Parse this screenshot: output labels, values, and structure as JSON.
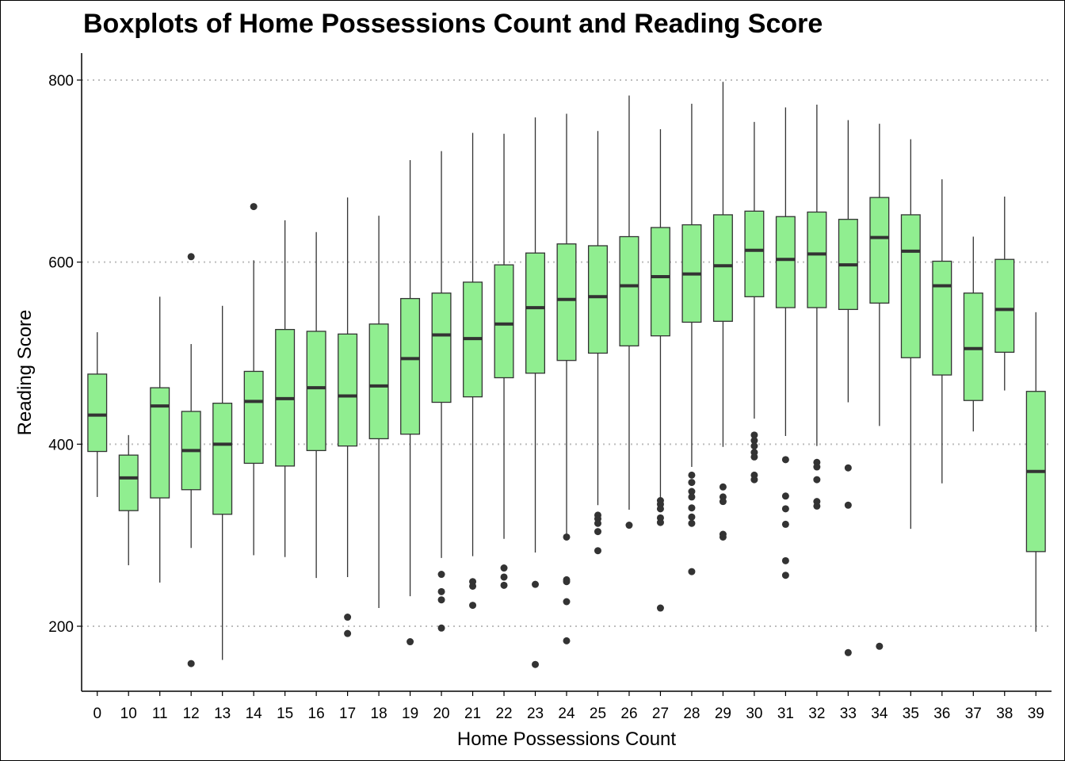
{
  "chart_data": {
    "type": "boxplot",
    "title": "Boxplots of Home Possessions Count and Reading Score",
    "xlabel": "Home Possessions Count",
    "ylabel": "Reading Score",
    "ylim": [
      130,
      830
    ],
    "yticks": [
      200,
      400,
      600,
      800
    ],
    "grid": "horizontal dotted",
    "box_color": "#90EE90",
    "line_color": "#333333",
    "categories": [
      "0",
      "10",
      "11",
      "12",
      "13",
      "14",
      "15",
      "16",
      "17",
      "18",
      "19",
      "20",
      "21",
      "22",
      "23",
      "24",
      "25",
      "26",
      "27",
      "28",
      "29",
      "30",
      "31",
      "32",
      "33",
      "34",
      "35",
      "36",
      "37",
      "38",
      "39"
    ],
    "boxes": [
      {
        "whisker_low": 342,
        "q1": 392,
        "median": 432,
        "q3": 477,
        "whisker_high": 523,
        "outliers": []
      },
      {
        "whisker_low": 267,
        "q1": 327,
        "median": 363,
        "q3": 388,
        "whisker_high": 410,
        "outliers": []
      },
      {
        "whisker_low": 248,
        "q1": 341,
        "median": 442,
        "q3": 462,
        "whisker_high": 562,
        "outliers": []
      },
      {
        "whisker_low": 286,
        "q1": 350,
        "median": 393,
        "q3": 436,
        "whisker_high": 510,
        "outliers": [
          606,
          159
        ]
      },
      {
        "whisker_low": 163,
        "q1": 323,
        "median": 400,
        "q3": 445,
        "whisker_high": 552,
        "outliers": []
      },
      {
        "whisker_low": 278,
        "q1": 379,
        "median": 447,
        "q3": 480,
        "whisker_high": 602,
        "outliers": [
          661
        ]
      },
      {
        "whisker_low": 276,
        "q1": 376,
        "median": 450,
        "q3": 526,
        "whisker_high": 646,
        "outliers": []
      },
      {
        "whisker_low": 253,
        "q1": 393,
        "median": 462,
        "q3": 524,
        "whisker_high": 633,
        "outliers": []
      },
      {
        "whisker_low": 254,
        "q1": 398,
        "median": 453,
        "q3": 521,
        "whisker_high": 671,
        "outliers": [
          210,
          192
        ]
      },
      {
        "whisker_low": 220,
        "q1": 406,
        "median": 464,
        "q3": 532,
        "whisker_high": 651,
        "outliers": []
      },
      {
        "whisker_low": 233,
        "q1": 411,
        "median": 494,
        "q3": 560,
        "whisker_high": 712,
        "outliers": [
          183
        ]
      },
      {
        "whisker_low": 275,
        "q1": 446,
        "median": 520,
        "q3": 566,
        "whisker_high": 722,
        "outliers": [
          257,
          238,
          229,
          198
        ]
      },
      {
        "whisker_low": 277,
        "q1": 452,
        "median": 516,
        "q3": 578,
        "whisker_high": 742,
        "outliers": [
          249,
          244,
          223
        ]
      },
      {
        "whisker_low": 296,
        "q1": 473,
        "median": 532,
        "q3": 597,
        "whisker_high": 741,
        "outliers": [
          264,
          254,
          245
        ]
      },
      {
        "whisker_low": 281,
        "q1": 478,
        "median": 550,
        "q3": 610,
        "whisker_high": 759,
        "outliers": [
          246,
          158
        ]
      },
      {
        "whisker_low": 300,
        "q1": 492,
        "median": 559,
        "q3": 620,
        "whisker_high": 763,
        "outliers": [
          298,
          251,
          249,
          227,
          184
        ]
      },
      {
        "whisker_low": 333,
        "q1": 500,
        "median": 562,
        "q3": 618,
        "whisker_high": 744,
        "outliers": [
          322,
          318,
          313,
          304,
          283
        ]
      },
      {
        "whisker_low": 328,
        "q1": 508,
        "median": 574,
        "q3": 628,
        "whisker_high": 783,
        "outliers": [
          311
        ]
      },
      {
        "whisker_low": 340,
        "q1": 519,
        "median": 584,
        "q3": 638,
        "whisker_high": 746,
        "outliers": [
          338,
          334,
          329,
          319,
          314,
          220
        ]
      },
      {
        "whisker_low": 375,
        "q1": 534,
        "median": 587,
        "q3": 641,
        "whisker_high": 774,
        "outliers": [
          366,
          358,
          348,
          342,
          330,
          320,
          313,
          260
        ]
      },
      {
        "whisker_low": 397,
        "q1": 535,
        "median": 596,
        "q3": 652,
        "whisker_high": 798,
        "outliers": [
          353,
          342,
          337,
          301,
          298
        ]
      },
      {
        "whisker_low": 428,
        "q1": 562,
        "median": 613,
        "q3": 656,
        "whisker_high": 754,
        "outliers": [
          410,
          404,
          398,
          391,
          386,
          366,
          361
        ]
      },
      {
        "whisker_low": 409,
        "q1": 550,
        "median": 603,
        "q3": 650,
        "whisker_high": 770,
        "outliers": [
          383,
          343,
          329,
          312,
          272,
          256
        ]
      },
      {
        "whisker_low": 398,
        "q1": 550,
        "median": 609,
        "q3": 655,
        "whisker_high": 773,
        "outliers": [
          380,
          375,
          361,
          337,
          332
        ]
      },
      {
        "whisker_low": 446,
        "q1": 548,
        "median": 597,
        "q3": 647,
        "whisker_high": 756,
        "outliers": [
          374,
          333,
          171
        ]
      },
      {
        "whisker_low": 420,
        "q1": 555,
        "median": 627,
        "q3": 671,
        "whisker_high": 752,
        "outliers": [
          178
        ]
      },
      {
        "whisker_low": 307,
        "q1": 495,
        "median": 612,
        "q3": 652,
        "whisker_high": 735,
        "outliers": []
      },
      {
        "whisker_low": 357,
        "q1": 476,
        "median": 574,
        "q3": 601,
        "whisker_high": 691,
        "outliers": []
      },
      {
        "whisker_low": 414,
        "q1": 448,
        "median": 505,
        "q3": 566,
        "whisker_high": 628,
        "outliers": []
      },
      {
        "whisker_low": 459,
        "q1": 501,
        "median": 548,
        "q3": 603,
        "whisker_high": 672,
        "outliers": []
      },
      {
        "whisker_low": 194,
        "q1": 282,
        "median": 370,
        "q3": 458,
        "whisker_high": 545,
        "outliers": []
      }
    ]
  }
}
